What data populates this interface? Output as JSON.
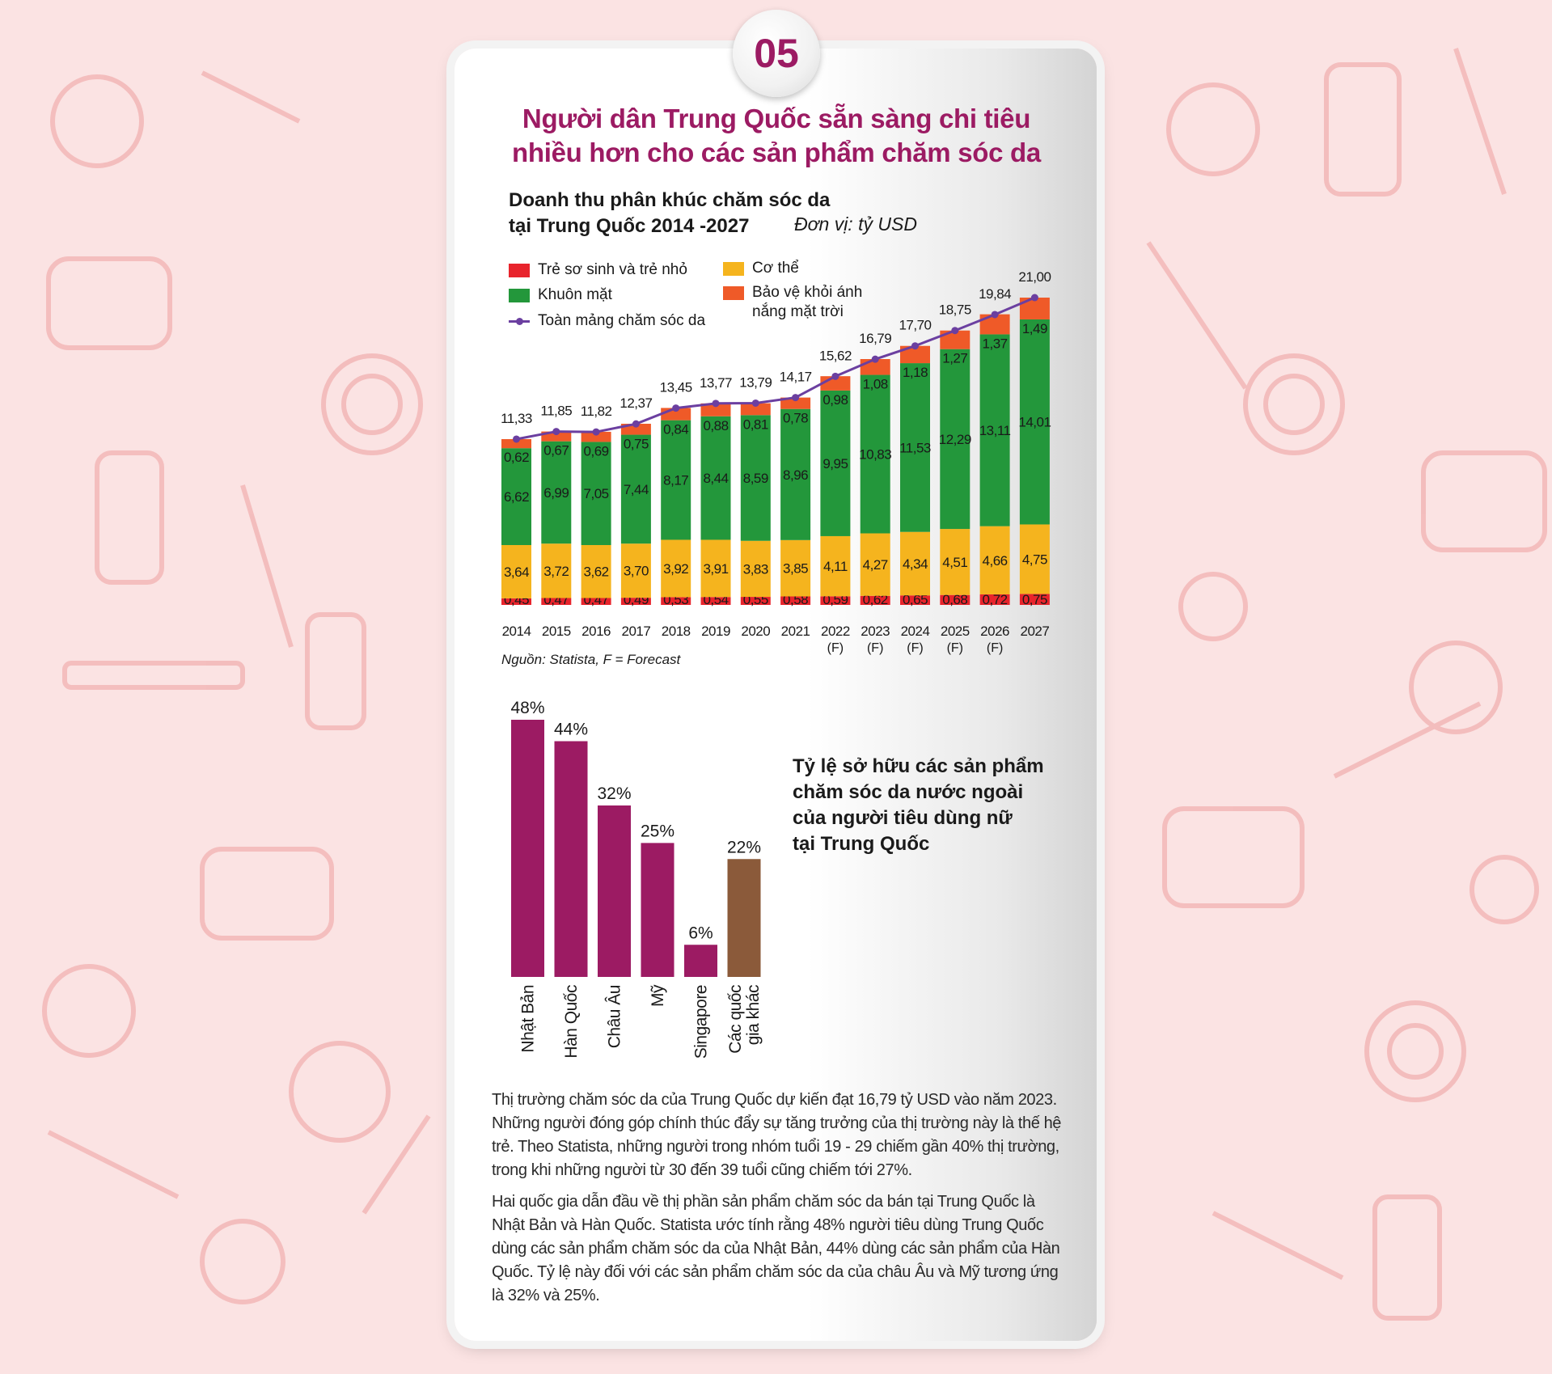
{
  "badge": {
    "number": "05"
  },
  "headline": {
    "line1": "Người dân Trung Quốc sẵn sàng chi tiêu",
    "line2": "nhiều hơn cho các sản phẩm chăm sóc da"
  },
  "revenue_chart": {
    "title_line1": "Doanh thu phân khúc chăm sóc da",
    "title_line2": "tại Trung Quốc 2014 -2027",
    "unit": "Đơn vị: tỷ USD",
    "source": "Nguồn: Statista, F = Forecast",
    "legend": {
      "infant": "Trẻ sơ sinh và trẻ nhỏ",
      "face": "Khuôn mặt",
      "total": "Toàn mảng chăm sóc da",
      "body": "Cơ thể",
      "sun_line1": "Bảo vệ khỏi ánh",
      "sun_line2": "nắng mặt trời"
    }
  },
  "ownership_chart": {
    "title_line1": "Tỷ lệ sở hữu các sản phẩm",
    "title_line2": "chăm sóc da nước ngoài",
    "title_line3": "của người tiêu dùng nữ",
    "title_line4": "tại Trung Quốc"
  },
  "chart_data": [
    {
      "type": "bar",
      "stacked": true,
      "title": "Doanh thu phân khúc chăm sóc da tại Trung Quốc 2014 -2027",
      "unit": "Đơn vị: tỷ USD",
      "categories": [
        "2014",
        "2015",
        "2016",
        "2017",
        "2018",
        "2019",
        "2020",
        "2021",
        "2022",
        "2023",
        "2024",
        "2025",
        "2026",
        "2027"
      ],
      "category_sublabels": [
        "",
        "",
        "",
        "",
        "",
        "",
        "",
        "",
        "(F)",
        "(F)",
        "(F)",
        "(F)",
        "(F)",
        ""
      ],
      "category_labels": [
        "2014",
        "2015",
        "2016",
        "2017",
        "2018",
        "2019",
        "2020",
        "2021",
        "2022 (F)",
        "2023 (F)",
        "2024 (F)",
        "2025 (F)",
        "2026 (F)",
        "2027"
      ],
      "series": [
        {
          "name": "Trẻ sơ sinh và trẻ nhỏ",
          "color": "#e8242c",
          "values": [
            0.45,
            0.47,
            0.47,
            0.49,
            0.53,
            0.54,
            0.55,
            0.58,
            0.59,
            0.62,
            0.65,
            0.68,
            0.72,
            0.75
          ],
          "labels": [
            "0,45",
            "0,47",
            "0,47",
            "0,49",
            "0,53",
            "0,54",
            "0,55",
            "0,58",
            "0,59",
            "0,62",
            "0,65",
            "0,68",
            "0,72",
            "0,75"
          ]
        },
        {
          "name": "Cơ thể",
          "color": "#f5b41e",
          "values": [
            3.64,
            3.72,
            3.62,
            3.7,
            3.92,
            3.91,
            3.83,
            3.85,
            4.11,
            4.27,
            4.34,
            4.51,
            4.66,
            4.75
          ],
          "labels": [
            "3,64",
            "3,72",
            "3,62",
            "3,70",
            "3,92",
            "3,91",
            "3,83",
            "3,85",
            "4,11",
            "4,27",
            "4,34",
            "4,51",
            "4,66",
            "4,75"
          ]
        },
        {
          "name": "Khuôn mặt",
          "color": "#23973b",
          "values": [
            6.62,
            6.99,
            7.05,
            7.44,
            8.17,
            8.44,
            8.59,
            8.96,
            9.95,
            10.83,
            11.53,
            12.29,
            13.11,
            14.01
          ],
          "labels": [
            "6,62",
            "6,99",
            "7,05",
            "7,44",
            "8,17",
            "8,44",
            "8,59",
            "8,96",
            "9,95",
            "10,83",
            "11,53",
            "12,29",
            "13,11",
            "14,01"
          ]
        },
        {
          "name": "Bảo vệ khỏi ánh nắng mặt trời",
          "color": "#ef5a28",
          "values": [
            0.62,
            0.67,
            0.69,
            0.75,
            0.84,
            0.88,
            0.81,
            0.78,
            0.98,
            1.08,
            1.18,
            1.27,
            1.37,
            1.49
          ],
          "labels": [
            "0,62",
            "0,67",
            "0,69",
            "0,75",
            "0,84",
            "0,88",
            "0,81",
            "0,78",
            "0,98",
            "1,08",
            "1,18",
            "1,27",
            "1,37",
            "1,49"
          ]
        }
      ],
      "total": {
        "name": "Toàn mảng chăm sóc da",
        "color": "#6b3fa0",
        "values": [
          11.33,
          11.85,
          11.82,
          12.37,
          13.45,
          13.77,
          13.79,
          14.17,
          15.62,
          16.79,
          17.7,
          18.75,
          19.84,
          21.0
        ],
        "labels": [
          "11,33",
          "11,85",
          "11,82",
          "12,37",
          "13,45",
          "13,77",
          "13,79",
          "14,17",
          "15,62",
          "16,79",
          "17,70",
          "18,75",
          "19,84",
          "21,00"
        ]
      },
      "ylim": [
        0,
        21
      ]
    },
    {
      "type": "bar",
      "title": "Tỷ lệ sở hữu các sản phẩm chăm sóc da nước ngoài của người tiêu dùng nữ tại Trung Quốc",
      "categories": [
        "Nhật Bản",
        "Hàn Quốc",
        "Châu Âu",
        "Mỹ",
        "Singapore",
        "Các quốc gia khác"
      ],
      "category_lines": [
        [
          "Nhật Bản"
        ],
        [
          "Hàn Quốc"
        ],
        [
          "Châu Âu"
        ],
        [
          "Mỹ"
        ],
        [
          "Singapore"
        ],
        [
          "Các quốc",
          "gia khác"
        ]
      ],
      "values": [
        48,
        44,
        32,
        25,
        6,
        22
      ],
      "labels": [
        "48%",
        "44%",
        "32%",
        "25%",
        "6%",
        "22%"
      ],
      "colors": [
        "#9c1b63",
        "#9c1b63",
        "#9c1b63",
        "#9c1b63",
        "#9c1b63",
        "#8b5a3a"
      ],
      "ylim": [
        0,
        48
      ]
    }
  ],
  "body_text": {
    "p1": "Thị trường chăm sóc da của Trung Quốc dự kiến đạt 16,79 tỷ USD vào năm 2023. Những người đóng góp chính thúc đẩy sự tăng trưởng của thị trường này là thế hệ trẻ. Theo Statista, những người trong nhóm tuổi 19 - 29 chiếm gần 40% thị trường, trong khi những người từ 30 đến 39 tuổi cũng chiếm tới 27%.",
    "p2": "Hai quốc gia dẫn đầu về thị phần sản phẩm chăm sóc da bán tại Trung Quốc là Nhật Bản và Hàn Quốc. Statista ước tính rằng 48% người tiêu dùng Trung Quốc dùng các sản phẩm chăm sóc da của Nhật Bản, 44% dùng các sản phẩm của Hàn Quốc. Tỷ lệ này đối với các sản phẩm chăm sóc da của châu Âu và Mỹ tương ứng là 32% và 25%."
  }
}
